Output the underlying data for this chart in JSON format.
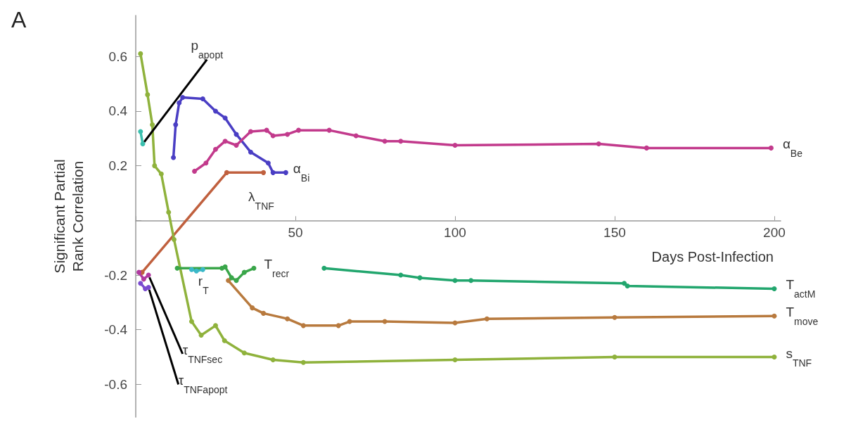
{
  "chart_data": {
    "type": "line",
    "xlabel": "Days Post-Infection",
    "ylabel": "Significant Partial\nRank Correlation",
    "annotations": [
      "A"
    ],
    "xlim": [
      0,
      202
    ],
    "ylim": [
      -0.72,
      0.75
    ],
    "xticks": [
      {
        "value": 0,
        "label": null
      },
      50,
      100,
      150,
      200
    ],
    "yticks": [
      -0.6,
      -0.4,
      -0.2,
      {
        "value": 0,
        "label": null
      },
      0.2,
      0.4,
      0.6
    ],
    "grid": false,
    "legend": false,
    "marker": "circle",
    "line_style": "solid",
    "series": [
      {
        "name": "p$_{apopt}$",
        "color": "#3abfae",
        "x": [
          1.5,
          2.2
        ],
        "values": [
          0.325,
          0.28
        ]
      },
      {
        "name": "α$_{Bi}$",
        "color": "#4a3ec4",
        "x": [
          11.8,
          12.5,
          13.6,
          14.7,
          21,
          25,
          28,
          31.5,
          36,
          41.5,
          43,
          47
        ],
        "values": [
          0.23,
          0.35,
          0.43,
          0.45,
          0.445,
          0.4,
          0.375,
          0.315,
          0.25,
          0.21,
          0.175,
          0.175
        ]
      },
      {
        "name": "λ$_{TNF}$",
        "color": "#c0603e",
        "x": [
          2,
          28.5,
          40
        ],
        "values": [
          -0.19,
          0.175,
          0.175
        ]
      },
      {
        "name": "α$_{Be}$",
        "color": "#c23a8c",
        "x": [
          18.4,
          22,
          25,
          28,
          31.5,
          36,
          41,
          43,
          47.5,
          51,
          60.6,
          69,
          78,
          83,
          100,
          145,
          160,
          199
        ],
        "values": [
          0.18,
          0.21,
          0.26,
          0.29,
          0.275,
          0.325,
          0.33,
          0.31,
          0.315,
          0.33,
          0.33,
          0.31,
          0.29,
          0.29,
          0.275,
          0.28,
          0.265,
          0.265
        ]
      },
      {
        "name": "T$_{actM}$",
        "color": "#22a66e",
        "x": [
          59,
          83,
          89,
          100,
          105,
          153,
          154,
          200
        ],
        "values": [
          -0.175,
          -0.2,
          -0.21,
          -0.22,
          -0.22,
          -0.23,
          -0.24,
          -0.25
        ]
      },
      {
        "name": "T$_{move}$",
        "color": "#b87a3e",
        "x": [
          29,
          36.5,
          40,
          47.5,
          52.5,
          63.5,
          67,
          78,
          100,
          110,
          150,
          200
        ],
        "values": [
          -0.22,
          -0.32,
          -0.34,
          -0.36,
          -0.385,
          -0.385,
          -0.37,
          -0.37,
          -0.375,
          -0.36,
          -0.355,
          -0.35
        ]
      },
      {
        "name": "s$_{TNF}$",
        "color": "#8fb23c",
        "x": [
          1.5,
          3.7,
          5.2,
          5.9,
          8,
          10.3,
          12,
          17.5,
          20.5,
          25,
          27.8,
          34,
          43,
          52.5,
          100,
          150,
          200
        ],
        "values": [
          0.61,
          0.46,
          0.35,
          0.2,
          0.17,
          0.03,
          -0.07,
          -0.37,
          -0.42,
          -0.385,
          -0.44,
          -0.485,
          -0.51,
          -0.52,
          -0.51,
          -0.5,
          -0.5
        ]
      },
      {
        "name": "r$_{T}$",
        "color": "#3ab8c8",
        "x": [
          17.5,
          19,
          21
        ],
        "values": [
          -0.18,
          -0.185,
          -0.18
        ]
      },
      {
        "name": "T$_{recr}$",
        "color": "#3aa64a",
        "x": [
          13,
          27,
          28,
          30,
          31.5,
          34,
          37
        ],
        "values": [
          -0.175,
          -0.175,
          -0.17,
          -0.21,
          -0.22,
          -0.19,
          -0.175
        ]
      },
      {
        "name": "τ$_{TNFsec}$",
        "color": "#b03aa0",
        "x": [
          1,
          2.5,
          4
        ],
        "values": [
          -0.19,
          -0.215,
          -0.2
        ]
      },
      {
        "name": "τ$_{TNFapopt}$",
        "color": "#7a4ad0",
        "x": [
          1.5,
          3,
          4
        ],
        "values": [
          -0.23,
          -0.25,
          -0.245
        ]
      }
    ]
  }
}
